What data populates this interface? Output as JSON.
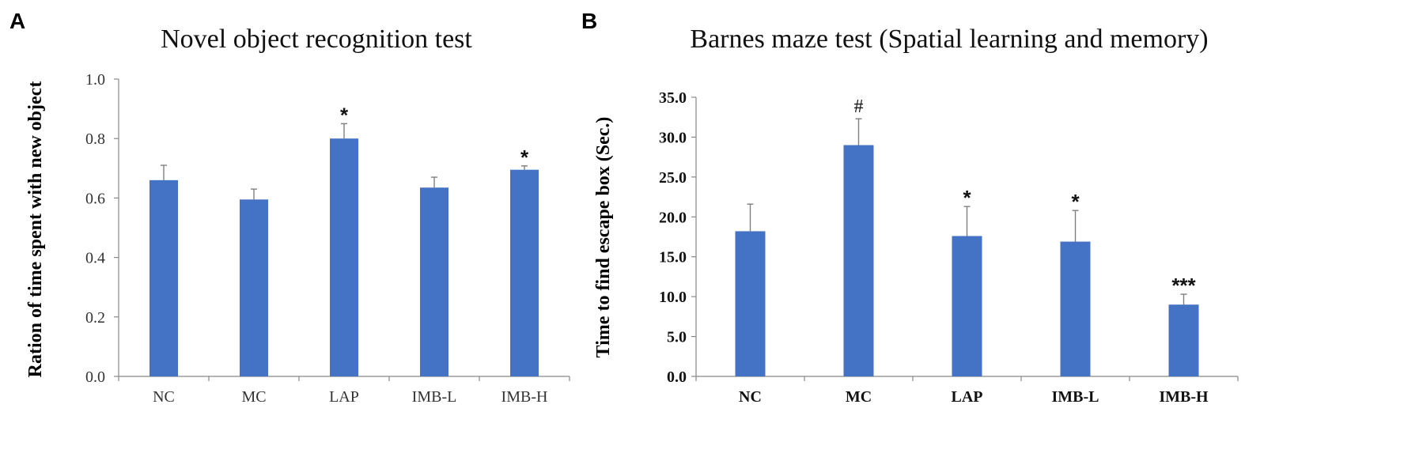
{
  "colors": {
    "bar": "#4472C4",
    "axis": "#888888",
    "error": "#7f7f7f"
  },
  "chart_data": [
    {
      "panel": "A",
      "type": "bar",
      "title": "Novel object recognition test",
      "xlabel": "",
      "ylabel": "Ration of time spent with new object",
      "categories": [
        "NC",
        "MC",
        "LAP",
        "IMB-L",
        "IMB-H"
      ],
      "values": [
        0.66,
        0.595,
        0.8,
        0.635,
        0.695
      ],
      "errors": [
        0.05,
        0.035,
        0.05,
        0.035,
        0.013
      ],
      "significance": [
        "",
        "",
        "*",
        "",
        "*"
      ],
      "ylim": [
        0.0,
        1.0
      ],
      "yticks": [
        "0.0",
        "0.2",
        "0.4",
        "0.6",
        "0.8",
        "1.0"
      ],
      "ytick_values": [
        0.0,
        0.2,
        0.4,
        0.6,
        0.8,
        1.0
      ]
    },
    {
      "panel": "B",
      "type": "bar",
      "title": "Barnes maze test (Spatial learning and memory)",
      "xlabel": "",
      "ylabel": "Time to find escape box (Sec.)",
      "categories": [
        "NC",
        "MC",
        "LAP",
        "IMB-L",
        "IMB-H"
      ],
      "values": [
        18.2,
        29.0,
        17.6,
        16.9,
        9.0
      ],
      "errors": [
        3.4,
        3.3,
        3.7,
        3.9,
        1.3
      ],
      "significance": [
        "",
        "#",
        "*",
        "*",
        "***"
      ],
      "ylim": [
        0.0,
        35.0
      ],
      "yticks": [
        "0.0",
        "5.0",
        "10.0",
        "15.0",
        "20.0",
        "25.0",
        "30.0",
        "35.0"
      ],
      "ytick_values": [
        0,
        5,
        10,
        15,
        20,
        25,
        30,
        35
      ]
    }
  ]
}
